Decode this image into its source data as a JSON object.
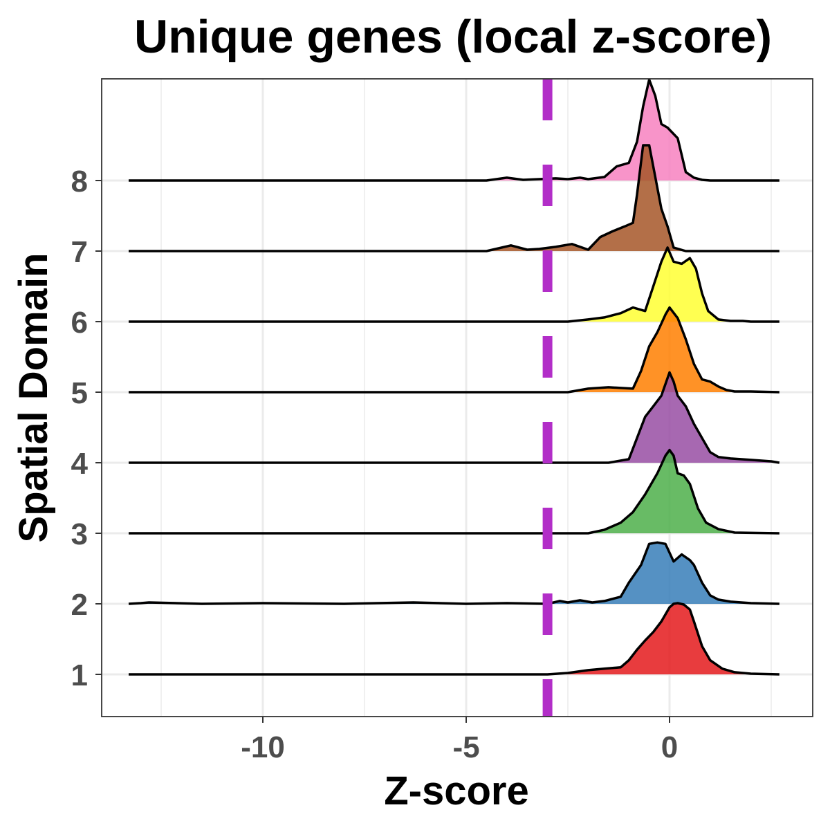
{
  "chart_data": {
    "type": "ridgeline",
    "title": "Unique genes (local z-score)",
    "xlabel": "Z-score",
    "ylabel": "Spatial Domain",
    "xlim": [
      -14,
      3.5
    ],
    "x_ticks": [
      -10,
      -5,
      0
    ],
    "x_tick_labels": [
      "-10",
      "-5",
      "0"
    ],
    "x_minor_gridlines": [
      -12.5,
      -7.5,
      -2.5,
      2.5
    ],
    "y_categories": [
      "1",
      "2",
      "3",
      "4",
      "5",
      "6",
      "7",
      "8"
    ],
    "grid": true,
    "legend": "none",
    "threshold": {
      "x": -3,
      "color": "#b22ec8",
      "style": "dashed"
    },
    "series": [
      {
        "domain": "1",
        "color": "#e41a1c",
        "x": [
          -13.3,
          -7,
          -3,
          -2.5,
          -2.0,
          -1.6,
          -1.2,
          -1.0,
          -0.8,
          -0.6,
          -0.4,
          -0.2,
          0.0,
          0.1,
          0.2,
          0.35,
          0.5,
          0.6,
          0.8,
          1.0,
          1.3,
          1.6,
          2.0,
          2.7
        ],
        "y": [
          0,
          0,
          0,
          0.02,
          0.06,
          0.08,
          0.1,
          0.2,
          0.35,
          0.48,
          0.6,
          0.75,
          0.95,
          1.0,
          1.01,
          0.99,
          0.92,
          0.75,
          0.4,
          0.2,
          0.08,
          0.03,
          0.01,
          0
        ]
      },
      {
        "domain": "2",
        "color": "#377eb8",
        "x": [
          -13.3,
          -13.0,
          -12.8,
          -11.5,
          -10,
          -8,
          -6.3,
          -5,
          -4,
          -3.0,
          -2.7,
          -2.5,
          -2.2,
          -1.9,
          -1.6,
          -1.2,
          -1.0,
          -0.7,
          -0.5,
          -0.3,
          -0.1,
          0.1,
          0.3,
          0.5,
          0.6,
          0.8,
          1.0,
          1.2,
          1.5,
          2.0,
          2.7
        ],
        "y": [
          0,
          0.01,
          0.02,
          0,
          0.01,
          0,
          0.02,
          0,
          0.01,
          0,
          0.04,
          0.02,
          0.05,
          0.02,
          0.04,
          0.1,
          0.3,
          0.55,
          0.85,
          0.87,
          0.85,
          0.6,
          0.7,
          0.62,
          0.55,
          0.3,
          0.12,
          0.06,
          0.03,
          0.01,
          0
        ]
      },
      {
        "domain": "3",
        "color": "#4daf4a",
        "x": [
          -13.3,
          -2.0,
          -1.6,
          -1.2,
          -0.9,
          -0.6,
          -0.3,
          -0.1,
          0.0,
          0.1,
          0.2,
          0.35,
          0.5,
          0.7,
          0.9,
          1.2,
          1.6,
          2.7
        ],
        "y": [
          0,
          0,
          0.05,
          0.15,
          0.3,
          0.55,
          0.85,
          1.1,
          1.18,
          1.1,
          0.85,
          0.82,
          0.7,
          0.35,
          0.15,
          0.06,
          0.01,
          0
        ]
      },
      {
        "domain": "4",
        "color": "#984ea3",
        "x": [
          -13.3,
          -1.5,
          -1.0,
          -0.8,
          -0.6,
          -0.4,
          -0.2,
          0.0,
          0.1,
          0.2,
          0.4,
          0.6,
          0.8,
          1.0,
          1.2,
          1.5,
          2.0,
          2.5,
          2.7
        ],
        "y": [
          0,
          0,
          0.05,
          0.35,
          0.65,
          0.8,
          0.95,
          1.28,
          1.15,
          0.95,
          0.8,
          0.55,
          0.35,
          0.15,
          0.08,
          0.06,
          0.04,
          0.02,
          0
        ]
      },
      {
        "domain": "5",
        "color": "#ff7f00",
        "x": [
          -13.3,
          -2.5,
          -2.0,
          -1.5,
          -1.2,
          -0.9,
          -0.7,
          -0.5,
          -0.3,
          -0.1,
          0.0,
          0.2,
          0.4,
          0.6,
          0.8,
          1.0,
          1.2,
          1.4,
          1.6,
          2.0,
          2.7
        ],
        "y": [
          0,
          0,
          0.05,
          0.07,
          0.06,
          0.05,
          0.3,
          0.65,
          0.85,
          1.1,
          1.2,
          1.05,
          0.75,
          0.4,
          0.18,
          0.15,
          0.08,
          0.03,
          0.01,
          0.01,
          0
        ]
      },
      {
        "domain": "6",
        "color": "#ffff33",
        "x": [
          -13.3,
          -2.5,
          -2.0,
          -1.6,
          -1.2,
          -0.9,
          -0.6,
          -0.4,
          -0.2,
          -0.05,
          0.1,
          0.3,
          0.5,
          0.65,
          0.8,
          0.95,
          1.2,
          1.5,
          1.8,
          2.0,
          2.7
        ],
        "y": [
          0,
          0,
          0.03,
          0.06,
          0.12,
          0.2,
          0.15,
          0.5,
          0.85,
          1.05,
          0.85,
          0.82,
          0.9,
          0.75,
          0.4,
          0.15,
          0.03,
          0.01,
          0.01,
          0,
          0
        ]
      },
      {
        "domain": "7",
        "color": "#a65628",
        "x": [
          -13.3,
          -4.5,
          -3.9,
          -3.5,
          -3.2,
          -2.8,
          -2.4,
          -2.0,
          -1.7,
          -1.4,
          -1.1,
          -0.9,
          -0.8,
          -0.65,
          -0.5,
          -0.35,
          -0.2,
          -0.05,
          0.1,
          0.4,
          2.7
        ],
        "y": [
          0,
          0,
          0.08,
          0.02,
          0.03,
          0.06,
          0.1,
          0.02,
          0.2,
          0.28,
          0.35,
          0.4,
          0.8,
          1.5,
          1.5,
          1.05,
          0.6,
          0.35,
          0.05,
          0,
          0
        ]
      },
      {
        "domain": "8",
        "color": "#f781bf",
        "x": [
          -13.3,
          -4.5,
          -4.0,
          -3.6,
          -3.2,
          -2.8,
          -2.5,
          -2.2,
          -2.0,
          -1.6,
          -1.3,
          -1.0,
          -0.8,
          -0.65,
          -0.5,
          -0.35,
          -0.2,
          -0.05,
          0.2,
          0.4,
          0.6,
          0.8,
          1.0,
          2.7
        ],
        "y": [
          0,
          0,
          0.04,
          0.01,
          0.02,
          0.03,
          0.02,
          0.04,
          0.02,
          0.05,
          0.2,
          0.25,
          0.55,
          1.05,
          1.43,
          1.2,
          0.8,
          0.75,
          0.6,
          0.12,
          0.04,
          0.01,
          0,
          0
        ]
      }
    ]
  }
}
